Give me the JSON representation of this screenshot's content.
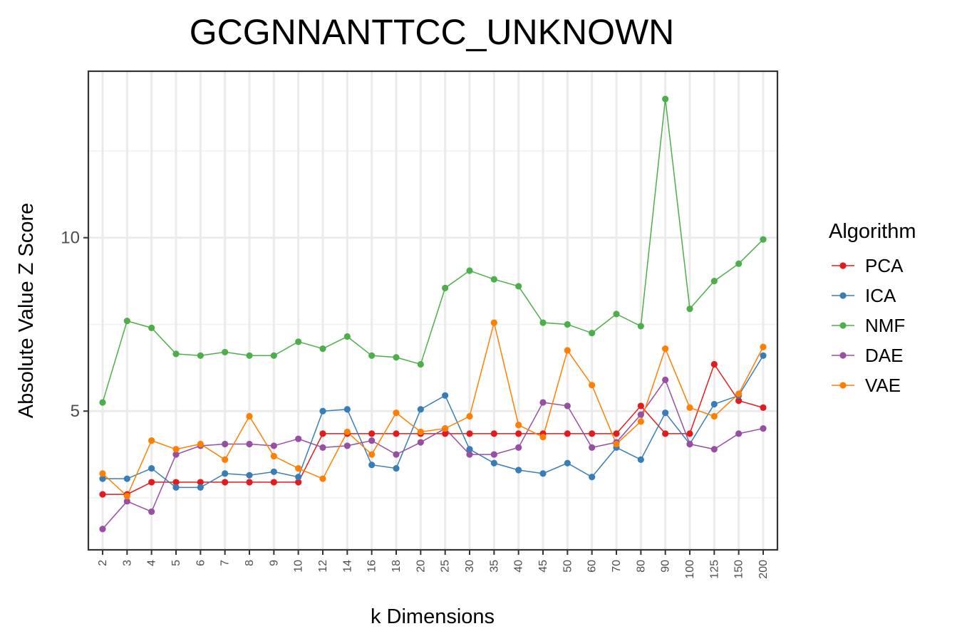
{
  "chart_data": {
    "type": "line",
    "title": "GCGNNANTTCC_UNKNOWN",
    "xlabel": "k Dimensions",
    "ylabel": "Absolute Value Z Score",
    "categories": [
      "2",
      "3",
      "4",
      "5",
      "6",
      "7",
      "8",
      "9",
      "10",
      "12",
      "14",
      "16",
      "18",
      "20",
      "25",
      "30",
      "35",
      "40",
      "45",
      "50",
      "60",
      "70",
      "80",
      "90",
      "100",
      "125",
      "150",
      "200"
    ],
    "ylim": [
      1.0,
      14.8
    ],
    "yticks": [
      5,
      10
    ],
    "grid": true,
    "legend": {
      "title": "Algorithm",
      "position": "right"
    },
    "series": [
      {
        "name": "PCA",
        "color": "#e41a1c",
        "values": [
          2.6,
          2.6,
          2.95,
          2.95,
          2.95,
          2.95,
          2.95,
          2.95,
          2.95,
          4.35,
          4.35,
          4.35,
          4.35,
          4.35,
          4.35,
          4.35,
          4.35,
          4.35,
          4.35,
          4.35,
          4.35,
          4.35,
          5.15,
          4.35,
          4.35,
          6.35,
          5.3,
          5.1
        ]
      },
      {
        "name": "ICA",
        "color": "#377eb8",
        "values": [
          3.05,
          3.05,
          3.35,
          2.8,
          2.8,
          3.2,
          3.15,
          3.25,
          3.1,
          5.0,
          5.05,
          3.45,
          3.35,
          5.05,
          5.45,
          3.9,
          3.5,
          3.3,
          3.2,
          3.5,
          3.1,
          3.95,
          3.6,
          4.95,
          4.05,
          5.2,
          5.45,
          6.6
        ]
      },
      {
        "name": "NMF",
        "color": "#4daf4a",
        "values": [
          5.25,
          7.6,
          7.4,
          6.65,
          6.6,
          6.7,
          6.6,
          6.6,
          7.0,
          6.8,
          7.15,
          6.6,
          6.55,
          6.35,
          8.55,
          9.05,
          8.8,
          8.6,
          7.55,
          7.5,
          7.25,
          7.8,
          7.45,
          14.0,
          7.95,
          8.75,
          9.25,
          9.95
        ]
      },
      {
        "name": "DAE",
        "color": "#984ea3",
        "values": [
          1.6,
          2.4,
          2.1,
          3.75,
          4.0,
          4.05,
          4.05,
          4.0,
          4.2,
          3.95,
          4.0,
          4.15,
          3.75,
          4.1,
          4.5,
          3.75,
          3.75,
          3.95,
          5.25,
          5.15,
          3.95,
          4.1,
          4.9,
          5.9,
          4.05,
          3.9,
          4.35,
          4.5
        ]
      },
      {
        "name": "VAE",
        "color": "#ff7f00",
        "values": [
          3.2,
          2.55,
          4.15,
          3.9,
          4.05,
          3.6,
          4.85,
          3.7,
          3.35,
          3.05,
          4.4,
          3.75,
          4.95,
          4.4,
          4.5,
          4.85,
          7.55,
          4.6,
          4.25,
          6.75,
          5.75,
          4.05,
          4.7,
          6.8,
          5.1,
          4.85,
          5.5,
          6.85
        ]
      }
    ]
  }
}
